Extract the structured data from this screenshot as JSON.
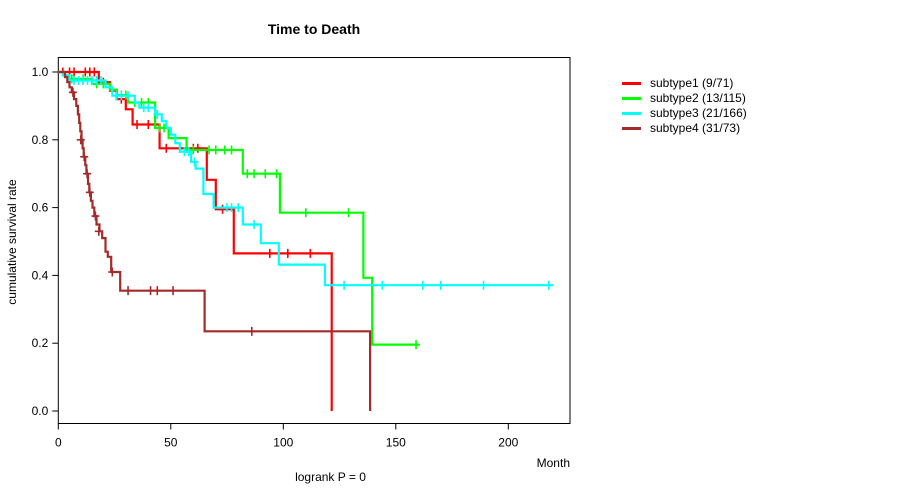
{
  "chart_data": {
    "type": "line",
    "subtype": "kaplan-meier-step-curves",
    "title": "Time to Death",
    "xlabel": "Month",
    "ylabel": "cumulative survival rate",
    "footnote": "logrank P = 0",
    "xlim": [
      0,
      227
    ],
    "ylim": [
      0,
      1.0
    ],
    "xticks": [
      0,
      50,
      100,
      150,
      200
    ],
    "yticks": [
      0.0,
      0.2,
      0.4,
      0.6,
      0.8,
      1.0
    ],
    "grid": false,
    "legend_position": "right-outside",
    "axis_color": "#000000",
    "series": [
      {
        "name": "subtype1 (9/71)",
        "color": "#ff0000",
        "points": [
          [
            0,
            1
          ],
          [
            18,
            0.97
          ],
          [
            23,
            0.945
          ],
          [
            26,
            0.92
          ],
          [
            30,
            0.89
          ],
          [
            33,
            0.845
          ],
          [
            45,
            0.775
          ],
          [
            66,
            0.682
          ],
          [
            70,
            0.595
          ],
          [
            78,
            0.465
          ],
          [
            121.5,
            0
          ]
        ],
        "end_time": null,
        "censors": [
          [
            2,
            1
          ],
          [
            5,
            1
          ],
          [
            7,
            1
          ],
          [
            12,
            1
          ],
          [
            14,
            1
          ],
          [
            16,
            1
          ],
          [
            20,
            0.97
          ],
          [
            28,
            0.92
          ],
          [
            35,
            0.845
          ],
          [
            40,
            0.845
          ],
          [
            48,
            0.775
          ],
          [
            54,
            0.775
          ],
          [
            57,
            0.775
          ],
          [
            60,
            0.775
          ],
          [
            62,
            0.775
          ],
          [
            73,
            0.595
          ],
          [
            94,
            0.465
          ],
          [
            98,
            0.465
          ],
          [
            102,
            0.465
          ],
          [
            112,
            0.465
          ]
        ]
      },
      {
        "name": "subtype2 (13/115)",
        "color": "#00ff00",
        "points": [
          [
            0,
            1
          ],
          [
            3,
            0.99
          ],
          [
            5,
            0.98
          ],
          [
            15,
            0.965
          ],
          [
            23,
            0.948
          ],
          [
            26,
            0.932
          ],
          [
            31,
            0.91
          ],
          [
            43,
            0.835
          ],
          [
            49,
            0.805
          ],
          [
            57,
            0.77
          ],
          [
            82,
            0.7
          ],
          [
            98.5,
            0.585
          ],
          [
            135.6,
            0.393
          ],
          [
            139.5,
            0.196
          ]
        ],
        "end_time": 160,
        "censors": [
          [
            6,
            0.98
          ],
          [
            11,
            0.98
          ],
          [
            17,
            0.965
          ],
          [
            20,
            0.965
          ],
          [
            28,
            0.932
          ],
          [
            30,
            0.932
          ],
          [
            34,
            0.91
          ],
          [
            37,
            0.91
          ],
          [
            40,
            0.91
          ],
          [
            45,
            0.835
          ],
          [
            47,
            0.835
          ],
          [
            60,
            0.77
          ],
          [
            67,
            0.77
          ],
          [
            70,
            0.77
          ],
          [
            74,
            0.77
          ],
          [
            77,
            0.77
          ],
          [
            84,
            0.7
          ],
          [
            87,
            0.7
          ],
          [
            92,
            0.7
          ],
          [
            97,
            0.7
          ],
          [
            110,
            0.585
          ],
          [
            129,
            0.585
          ],
          [
            159,
            0.196
          ]
        ]
      },
      {
        "name": "subtype3 (21/166)",
        "color": "#00ffff",
        "points": [
          [
            0,
            1
          ],
          [
            2,
            0.99
          ],
          [
            5,
            0.975
          ],
          [
            21,
            0.955
          ],
          [
            24,
            0.93
          ],
          [
            34,
            0.91
          ],
          [
            36,
            0.895
          ],
          [
            43,
            0.875
          ],
          [
            46,
            0.855
          ],
          [
            48,
            0.835
          ],
          [
            50,
            0.815
          ],
          [
            52,
            0.79
          ],
          [
            54,
            0.765
          ],
          [
            59,
            0.735
          ],
          [
            61,
            0.715
          ],
          [
            64.5,
            0.64
          ],
          [
            69,
            0.6
          ],
          [
            82,
            0.55
          ],
          [
            90,
            0.495
          ],
          [
            98,
            0.432
          ],
          [
            118.5,
            0.371
          ]
        ],
        "end_time": 220,
        "censors": [
          [
            7,
            0.975
          ],
          [
            9,
            0.975
          ],
          [
            11,
            0.975
          ],
          [
            13,
            0.975
          ],
          [
            15,
            0.975
          ],
          [
            17,
            0.975
          ],
          [
            19,
            0.975
          ],
          [
            26,
            0.93
          ],
          [
            28,
            0.93
          ],
          [
            31,
            0.93
          ],
          [
            38,
            0.895
          ],
          [
            40,
            0.895
          ],
          [
            44,
            0.875
          ],
          [
            56,
            0.765
          ],
          [
            58,
            0.765
          ],
          [
            60.5,
            0.735
          ],
          [
            75,
            0.6
          ],
          [
            77,
            0.6
          ],
          [
            80,
            0.6
          ],
          [
            87,
            0.55
          ],
          [
            127,
            0.371
          ],
          [
            144,
            0.371
          ],
          [
            162,
            0.371
          ],
          [
            170,
            0.371
          ],
          [
            189,
            0.371
          ],
          [
            218,
            0.371
          ]
        ]
      },
      {
        "name": "subtype4 (31/73)",
        "color": "#a52a2a",
        "points": [
          [
            0,
            1
          ],
          [
            3,
            0.985
          ],
          [
            4,
            0.97
          ],
          [
            5,
            0.955
          ],
          [
            6,
            0.94
          ],
          [
            7,
            0.92
          ],
          [
            8,
            0.9
          ],
          [
            8.7,
            0.875
          ],
          [
            9.3,
            0.85
          ],
          [
            9.8,
            0.825
          ],
          [
            10.3,
            0.8
          ],
          [
            10.8,
            0.775
          ],
          [
            11.3,
            0.75
          ],
          [
            12,
            0.725
          ],
          [
            12.5,
            0.7
          ],
          [
            13.2,
            0.67
          ],
          [
            13.8,
            0.645
          ],
          [
            14.5,
            0.62
          ],
          [
            15.2,
            0.6
          ],
          [
            16,
            0.575
          ],
          [
            17,
            0.55
          ],
          [
            18.3,
            0.53
          ],
          [
            19.5,
            0.51
          ],
          [
            21,
            0.47
          ],
          [
            22,
            0.455
          ],
          [
            23.5,
            0.41
          ],
          [
            27.5,
            0.355
          ],
          [
            65,
            0.235
          ],
          [
            138.6,
            0
          ]
        ],
        "end_time": null,
        "censors": [
          [
            6.5,
            0.94
          ],
          [
            10,
            0.8
          ],
          [
            11.5,
            0.75
          ],
          [
            12.8,
            0.7
          ],
          [
            14,
            0.645
          ],
          [
            16.5,
            0.575
          ],
          [
            18,
            0.53
          ],
          [
            24,
            0.41
          ],
          [
            31,
            0.355
          ],
          [
            41,
            0.355
          ],
          [
            44,
            0.355
          ],
          [
            51,
            0.355
          ],
          [
            86,
            0.235
          ]
        ]
      }
    ]
  }
}
